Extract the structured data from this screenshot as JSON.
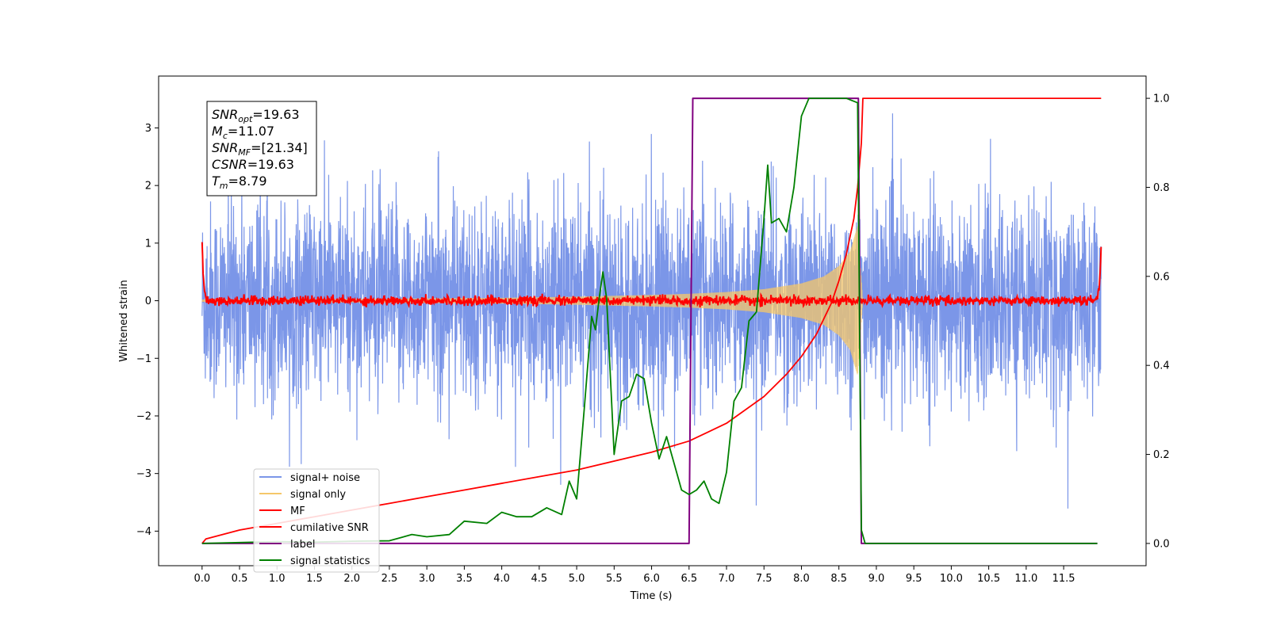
{
  "chart_data": {
    "type": "line",
    "xlabel": "Time (s)",
    "ylabel": "Whitened strain",
    "xlim": [
      -0.58,
      12.6
    ],
    "ylim_left": [
      -4.6,
      3.9
    ],
    "ylim_right": [
      -0.05,
      1.05
    ],
    "x_ticks": [
      0.0,
      0.5,
      1.0,
      1.5,
      2.0,
      2.5,
      3.0,
      3.5,
      4.0,
      4.5,
      5.0,
      5.5,
      6.0,
      6.5,
      7.0,
      7.5,
      8.0,
      8.5,
      9.0,
      9.5,
      10.0,
      10.5,
      11.0,
      11.5
    ],
    "x_tick_labels": [
      "0.0",
      "0.5",
      "1.0",
      "1.5",
      "2.0",
      "2.5",
      "3.0",
      "3.5",
      "4.0",
      "4.5",
      "5.0",
      "5.5",
      "6.0",
      "6.5",
      "7.0",
      "7.5",
      "8.0",
      "8.5",
      "9.0",
      "9.5",
      "10.0",
      "10.5",
      "11.0",
      "11.5"
    ],
    "y_left_ticks": [
      -4,
      -3,
      -2,
      -1,
      0,
      1,
      2,
      3
    ],
    "y_left_tick_labels": [
      "−4",
      "−3",
      "−2",
      "−1",
      "0",
      "1",
      "2",
      "3"
    ],
    "y_right_ticks": [
      0.0,
      0.2,
      0.4,
      0.6,
      0.8,
      1.0
    ],
    "y_right_tick_labels": [
      "0.0",
      "0.2",
      "0.4",
      "0.6",
      "0.8",
      "1.0"
    ],
    "legend_position": "lower-left",
    "grid": false,
    "series": [
      {
        "name": "signal+ noise",
        "axis": "left",
        "color": "#7b96e8",
        "x_range": [
          0.0,
          12.0
        ],
        "amplitude_range": [
          -4.1,
          3.55
        ],
        "typical_std": 0.85
      },
      {
        "name": "signal only",
        "axis": "left",
        "color": "#f5c76a",
        "envelope_x": [
          0.0,
          2.0,
          4.0,
          5.0,
          6.0,
          6.5,
          7.0,
          7.5,
          8.0,
          8.3,
          8.5,
          8.65,
          8.75,
          8.82
        ],
        "envelope_amp": [
          0.02,
          0.03,
          0.05,
          0.07,
          0.1,
          0.12,
          0.15,
          0.2,
          0.3,
          0.42,
          0.6,
          0.85,
          1.3,
          0.0
        ]
      },
      {
        "name": "MF",
        "axis": "left",
        "color": "#ff0000",
        "x_range": [
          0.0,
          12.0
        ],
        "edge_values": [
          1.0,
          0.95
        ],
        "noise_std": 0.04
      },
      {
        "name": "cumilative SNR",
        "axis": "right",
        "color": "#ff0000",
        "x": [
          0.0,
          0.05,
          0.5,
          1.0,
          1.5,
          2.0,
          2.5,
          3.0,
          3.5,
          4.0,
          4.5,
          5.0,
          5.5,
          6.0,
          6.5,
          7.0,
          7.5,
          7.8,
          8.0,
          8.2,
          8.4,
          8.5,
          8.6,
          8.7,
          8.75,
          8.8,
          8.82,
          12.0
        ],
        "y": [
          0.0,
          0.01,
          0.03,
          0.045,
          0.06,
          0.075,
          0.09,
          0.105,
          0.12,
          0.135,
          0.15,
          0.165,
          0.185,
          0.205,
          0.23,
          0.27,
          0.33,
          0.38,
          0.42,
          0.47,
          0.54,
          0.59,
          0.65,
          0.73,
          0.8,
          0.9,
          1.0,
          1.0
        ]
      },
      {
        "name": "label",
        "axis": "right",
        "color": "#800080",
        "x": [
          0.0,
          6.5,
          6.55,
          8.76,
          8.8,
          11.95
        ],
        "y": [
          0.0,
          0.0,
          1.0,
          1.0,
          0.0,
          0.0
        ]
      },
      {
        "name": "signal statistics",
        "axis": "right",
        "color": "#008000",
        "x": [
          0.0,
          0.5,
          1.0,
          1.5,
          2.0,
          2.5,
          2.8,
          3.0,
          3.3,
          3.5,
          3.8,
          4.0,
          4.2,
          4.4,
          4.6,
          4.8,
          4.9,
          5.0,
          5.1,
          5.2,
          5.25,
          5.3,
          5.35,
          5.4,
          5.5,
          5.6,
          5.7,
          5.8,
          5.9,
          6.0,
          6.1,
          6.2,
          6.3,
          6.4,
          6.5,
          6.6,
          6.7,
          6.8,
          6.9,
          7.0,
          7.1,
          7.2,
          7.3,
          7.4,
          7.5,
          7.55,
          7.6,
          7.7,
          7.8,
          7.9,
          8.0,
          8.1,
          8.2,
          8.4,
          8.6,
          8.75,
          8.8,
          8.85,
          11.95
        ],
        "y": [
          0.0,
          0.002,
          0.004,
          0.003,
          0.005,
          0.006,
          0.02,
          0.015,
          0.02,
          0.05,
          0.045,
          0.07,
          0.06,
          0.06,
          0.08,
          0.065,
          0.14,
          0.1,
          0.3,
          0.51,
          0.48,
          0.55,
          0.61,
          0.55,
          0.2,
          0.32,
          0.33,
          0.38,
          0.37,
          0.27,
          0.19,
          0.24,
          0.18,
          0.12,
          0.11,
          0.12,
          0.14,
          0.1,
          0.09,
          0.16,
          0.32,
          0.35,
          0.5,
          0.52,
          0.73,
          0.85,
          0.72,
          0.73,
          0.7,
          0.8,
          0.96,
          1.0,
          1.0,
          1.0,
          1.0,
          0.99,
          0.03,
          0.0,
          0.0
        ]
      }
    ],
    "annotation_lines": [
      {
        "sym": "SNR",
        "sub": "opt",
        "rest": "=19.63"
      },
      {
        "sym": "M",
        "sub": "c",
        "rest": "=11.07"
      },
      {
        "sym": "SNR",
        "sub": "MF",
        "rest": "=[21.34]"
      },
      {
        "sym": "CSNR",
        "sub": "",
        "rest": "=19.63"
      },
      {
        "sym": "T",
        "sub": "m",
        "rest": "=8.79"
      }
    ]
  }
}
